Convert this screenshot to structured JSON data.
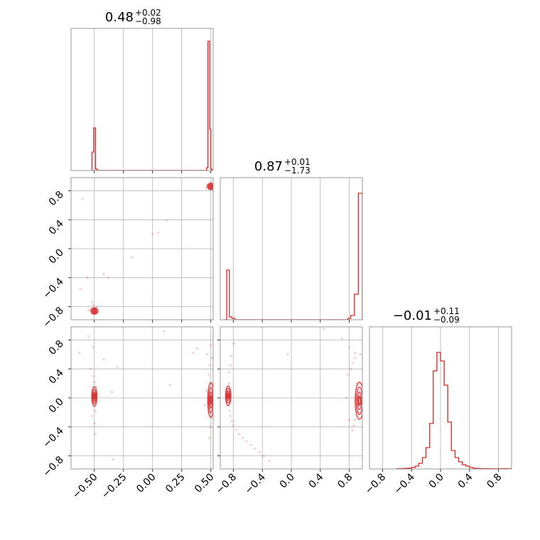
{
  "chart_data": {
    "type": "corner",
    "color": "#d62728",
    "grid": true,
    "parameters": [
      {
        "title": {
          "median": "0.48",
          "plus": "+0.02",
          "minus": "−0.98"
        },
        "range": [
          -0.7,
          0.52
        ],
        "ticks": [
          -0.5,
          -0.25,
          0.0,
          0.25,
          0.5
        ],
        "tick_labels": [
          "−0.50",
          "−0.25",
          "0.00",
          "0.25",
          "0.50"
        ]
      },
      {
        "title": {
          "median": "0.87",
          "plus": "+0.01",
          "minus": "−1.73"
        },
        "range": [
          -0.98,
          0.98
        ],
        "ticks": [
          -0.8,
          -0.4,
          0.0,
          0.4,
          0.8
        ],
        "tick_labels": [
          "−0.8",
          "−0.4",
          "0.0",
          "0.4",
          "0.8"
        ]
      },
      {
        "title": {
          "median": "−0.01",
          "plus": "+0.11",
          "minus": "−0.09"
        },
        "range": [
          -0.98,
          0.98
        ],
        "ticks": [
          -0.8,
          -0.4,
          0.0,
          0.4,
          0.8
        ],
        "tick_labels": [
          "−0.8",
          "−0.4",
          "0.0",
          "0.4",
          "0.8"
        ]
      }
    ],
    "histograms": [
      {
        "bins": [
          [
            -0.52,
            -0.505,
            0.13
          ],
          [
            -0.505,
            -0.49,
            0.3
          ],
          [
            -0.49,
            -0.475,
            0.01
          ],
          [
            -0.475,
            0.465,
            0.0
          ],
          [
            0.465,
            0.475,
            0.02
          ],
          [
            0.475,
            0.49,
            0.91
          ],
          [
            0.49,
            0.5,
            0.29
          ],
          [
            0.5,
            0.51,
            0.01
          ]
        ]
      },
      {
        "bins": [
          [
            -0.93,
            -0.89,
            0.0
          ],
          [
            -0.89,
            -0.855,
            0.35
          ],
          [
            -0.855,
            -0.82,
            0.02
          ],
          [
            -0.82,
            -0.78,
            0.01
          ],
          [
            -0.78,
            -0.72,
            0.0
          ],
          [
            -0.72,
            0.78,
            0.0
          ],
          [
            0.78,
            0.82,
            0.01
          ],
          [
            0.82,
            0.87,
            0.03
          ],
          [
            0.87,
            0.925,
            0.18
          ],
          [
            0.925,
            0.98,
            0.89
          ]
        ]
      },
      {
        "bins": [
          [
            -0.6,
            -0.55,
            0.002
          ],
          [
            -0.55,
            -0.5,
            0.002
          ],
          [
            -0.5,
            -0.45,
            0.004
          ],
          [
            -0.45,
            -0.4,
            0.005
          ],
          [
            -0.4,
            -0.35,
            0.01
          ],
          [
            -0.35,
            -0.3,
            0.02
          ],
          [
            -0.3,
            -0.25,
            0.04
          ],
          [
            -0.25,
            -0.2,
            0.08
          ],
          [
            -0.2,
            -0.15,
            0.15
          ],
          [
            -0.15,
            -0.1,
            0.32
          ],
          [
            -0.1,
            -0.05,
            0.69
          ],
          [
            -0.05,
            0.0,
            0.82
          ],
          [
            0.0,
            0.05,
            0.76
          ],
          [
            0.05,
            0.1,
            0.59
          ],
          [
            0.1,
            0.15,
            0.33
          ],
          [
            0.15,
            0.2,
            0.13
          ],
          [
            0.2,
            0.25,
            0.08
          ],
          [
            0.25,
            0.3,
            0.05
          ],
          [
            0.3,
            0.35,
            0.03
          ],
          [
            0.35,
            0.4,
            0.02
          ],
          [
            0.4,
            0.45,
            0.01
          ],
          [
            0.45,
            0.5,
            0.005
          ],
          [
            0.5,
            0.55,
            0.003
          ],
          [
            0.55,
            0.6,
            0.002
          ],
          [
            0.6,
            0.65,
            0.002
          ],
          [
            0.65,
            0.7,
            0.002
          ],
          [
            0.7,
            0.8,
            0.001
          ],
          [
            0.85,
            0.9,
            0.002
          ],
          [
            0.9,
            0.98,
            0.001
          ]
        ]
      }
    ],
    "scatter_panels": [
      {
        "row": 1,
        "col": 0,
        "clusters": [
          {
            "cx": -0.5,
            "cy": -0.86,
            "rx": 0.02,
            "ry": 0.03
          },
          {
            "cx": 0.5,
            "cy": 0.86,
            "rx": 0.02,
            "ry": 0.03
          }
        ],
        "points": [
          [
            -0.5,
            -0.82
          ],
          [
            -0.51,
            -0.78
          ],
          [
            -0.52,
            -0.74
          ],
          [
            -0.49,
            -0.89
          ],
          [
            -0.53,
            -0.83
          ],
          [
            -0.47,
            -0.88
          ],
          [
            -0.55,
            -0.85
          ],
          [
            -0.48,
            -0.8
          ],
          [
            -0.56,
            -0.4
          ],
          [
            -0.38,
            -0.4
          ],
          [
            -0.42,
            -0.35
          ],
          [
            -0.62,
            -0.56
          ],
          [
            -0.18,
            -0.12
          ],
          [
            0.0,
            0.2
          ],
          [
            0.05,
            0.22
          ],
          [
            0.12,
            0.39
          ],
          [
            -0.6,
            0.69
          ],
          [
            0.49,
            0.82
          ],
          [
            0.52,
            0.8
          ],
          [
            0.47,
            0.88
          ],
          [
            0.46,
            0.84
          ],
          [
            0.5,
            0.91
          ]
        ]
      },
      {
        "row": 2,
        "col": 0,
        "clusters": [
          {
            "cx": -0.5,
            "cy": 0.02,
            "rx": 0.015,
            "ry": 0.09
          },
          {
            "cx": 0.5,
            "cy": -0.03,
            "rx": 0.018,
            "ry": 0.16
          }
        ],
        "points": [
          [
            -0.5,
            0.22
          ],
          [
            -0.51,
            0.3
          ],
          [
            -0.49,
            -0.18
          ],
          [
            -0.52,
            -0.25
          ],
          [
            -0.5,
            -0.35
          ],
          [
            -0.48,
            0.15
          ],
          [
            -0.53,
            0.4
          ],
          [
            -0.51,
            0.7
          ],
          [
            -0.49,
            -0.5
          ],
          [
            -0.47,
            0.05
          ],
          [
            -0.55,
            0.85
          ],
          [
            -0.63,
            0.62
          ],
          [
            -0.42,
            0.53
          ],
          [
            -0.3,
            0.43
          ],
          [
            0.1,
            0.92
          ],
          [
            0.15,
            0.18
          ],
          [
            -0.34,
            -0.85
          ],
          [
            -0.35,
            0.08
          ],
          [
            0.49,
            0.45
          ],
          [
            0.51,
            0.55
          ],
          [
            0.5,
            -0.4
          ],
          [
            0.48,
            0.32
          ],
          [
            0.52,
            -0.28
          ],
          [
            0.47,
            0.6
          ],
          [
            0.5,
            0.72
          ],
          [
            0.49,
            -0.55
          ],
          [
            0.51,
            0.2
          ],
          [
            0.48,
            -0.2
          ],
          [
            0.46,
            0.1
          ],
          [
            0.53,
            0.38
          ],
          [
            0.45,
            -0.1
          ],
          [
            0.52,
            0.85
          ],
          [
            0.35,
            0.62
          ],
          [
            0.38,
            0.68
          ]
        ]
      },
      {
        "row": 2,
        "col": 1,
        "clusters": [
          {
            "cx": -0.87,
            "cy": 0.03,
            "rx": 0.025,
            "ry": 0.09
          },
          {
            "cx": 0.94,
            "cy": -0.04,
            "rx": 0.04,
            "ry": 0.17
          }
        ],
        "points": [
          [
            -0.86,
            0.2
          ],
          [
            -0.85,
            -0.18
          ],
          [
            -0.84,
            -0.25
          ],
          [
            -0.82,
            -0.32
          ],
          [
            -0.8,
            -0.38
          ],
          [
            -0.76,
            -0.44
          ],
          [
            -0.72,
            -0.5
          ],
          [
            -0.67,
            -0.55
          ],
          [
            -0.62,
            -0.6
          ],
          [
            -0.56,
            -0.65
          ],
          [
            -0.5,
            -0.7
          ],
          [
            -0.44,
            -0.75
          ],
          [
            -0.38,
            -0.8
          ],
          [
            -0.3,
            -0.87
          ],
          [
            -0.86,
            0.35
          ],
          [
            -0.84,
            0.45
          ],
          [
            -0.83,
            0.58
          ],
          [
            -0.79,
            0.75
          ],
          [
            -0.88,
            -0.1
          ],
          [
            -0.89,
            0.1
          ],
          [
            -0.05,
            0.6
          ],
          [
            0.45,
            0.95
          ],
          [
            0.7,
            0.82
          ],
          [
            0.88,
            0.55
          ],
          [
            0.85,
            0.48
          ],
          [
            0.82,
            0.4
          ],
          [
            0.78,
            0.32
          ],
          [
            0.9,
            0.2
          ],
          [
            0.92,
            -0.2
          ],
          [
            0.88,
            -0.3
          ],
          [
            0.86,
            -0.38
          ],
          [
            0.84,
            -0.45
          ],
          [
            0.8,
            -0.3
          ],
          [
            0.76,
            0.0
          ],
          [
            0.95,
            0.6
          ],
          [
            0.88,
            0.62
          ],
          [
            0.8,
            0.7
          ]
        ]
      }
    ]
  }
}
